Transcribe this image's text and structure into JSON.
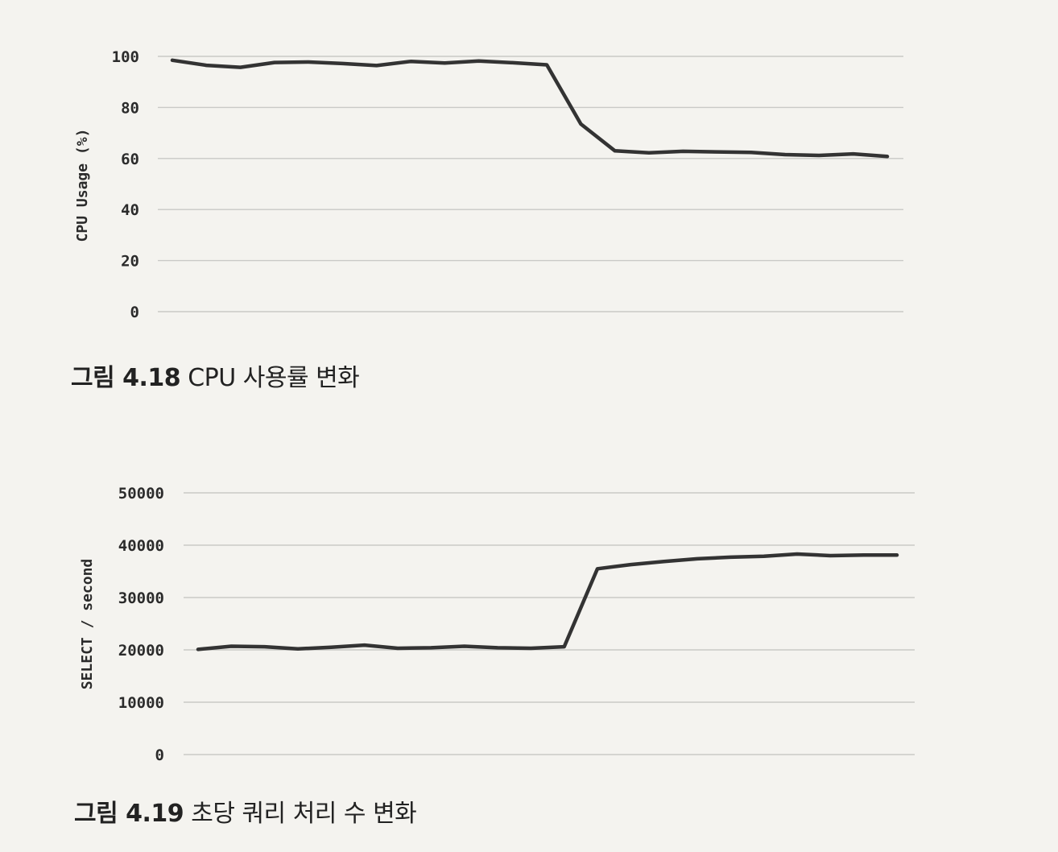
{
  "chart_data": [
    {
      "type": "line",
      "ylabel": "CPU Usage (%)",
      "xlabel": "",
      "ylim": [
        0,
        100
      ],
      "yticks": [
        0,
        20,
        40,
        60,
        80,
        100
      ],
      "grid": true,
      "series": [
        {
          "values": [
            98.5,
            96.5,
            95.7,
            97.6,
            97.8,
            97.2,
            96.4,
            98.0,
            97.4,
            98.2,
            97.5,
            96.7,
            73.5,
            63.0,
            62.2,
            62.8,
            62.6,
            62.4,
            61.5,
            61.2,
            61.8,
            60.8
          ]
        }
      ],
      "caption": {
        "label": "그림 4.18",
        "text": "CPU 사용률 변화"
      }
    },
    {
      "type": "line",
      "ylabel": "SELECT / second",
      "xlabel": "",
      "ylim": [
        0,
        50000
      ],
      "yticks": [
        0,
        10000,
        20000,
        30000,
        40000,
        50000
      ],
      "grid": true,
      "series": [
        {
          "values": [
            20100,
            20700,
            20600,
            20200,
            20500,
            20900,
            20300,
            20400,
            20700,
            20400,
            20300,
            20600,
            35500,
            36300,
            36900,
            37400,
            37700,
            37900,
            38300,
            38000,
            38100,
            38100
          ]
        }
      ],
      "caption": {
        "label": "그림 4.19",
        "text": "초당 쿼리 처리 수 변화"
      }
    }
  ],
  "colors": {
    "line": "#333333",
    "grid": "#c9c9c6",
    "background": "#f4f3ef"
  }
}
